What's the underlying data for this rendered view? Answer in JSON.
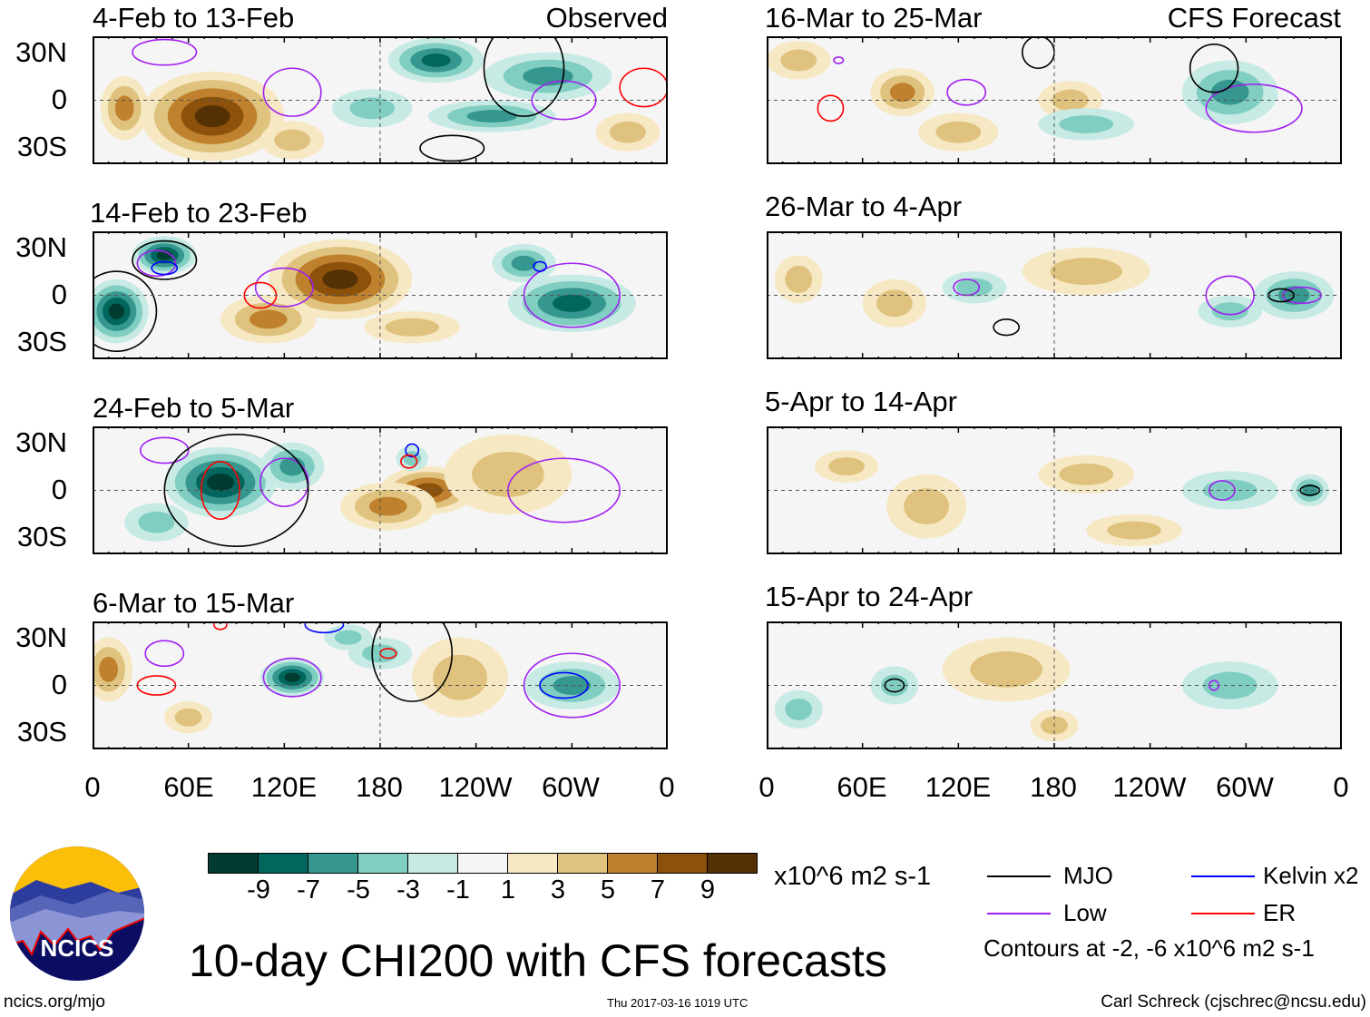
{
  "title": "10-day CHI200 with CFS forecasts",
  "left_header_right": "Observed",
  "right_header_right": "CFS Forecast",
  "colorbar": {
    "colors": [
      "#003c30",
      "#01665e",
      "#35978f",
      "#80cdc1",
      "#c7eae5",
      "#f5f5f5",
      "#f6e8c3",
      "#dfc27d",
      "#bf812d",
      "#8c510a",
      "#543005"
    ],
    "ticks": [
      "-9",
      "-7",
      "-5",
      "-3",
      "-1",
      "1",
      "3",
      "5",
      "7",
      "9"
    ],
    "units": "x10^6 m2 s-1"
  },
  "legend": {
    "items": [
      {
        "label": "MJO",
        "color": "#000000"
      },
      {
        "label": "Kelvin x2",
        "color": "#0000ff"
      },
      {
        "label": "Low",
        "color": "#a020f0"
      },
      {
        "label": "ER",
        "color": "#ff0000"
      }
    ],
    "contours_note": "Contours at -2, -6 x10^6 m2 s-1"
  },
  "axes": {
    "y_ticks": [
      "30N",
      "0",
      "30S"
    ],
    "x_ticks": [
      "0",
      "60E",
      "120E",
      "180",
      "120W",
      "60W",
      "0"
    ]
  },
  "logo": {
    "text": "NCICS"
  },
  "footer": {
    "url": "ncics.org/mjo",
    "timestamp": "Thu 2017-03-16 1019 UTC",
    "author": "Carl Schreck (cjschrec@ncsu.edu)"
  },
  "chart_data": {
    "type": "heatmap",
    "variable": "CHI200 anomaly",
    "lon_range": [
      0,
      360
    ],
    "lat_range": [
      -40,
      40
    ],
    "panels": [
      {
        "title": "4-Feb to 13-Feb",
        "blobs": [
          [
            75,
            -10,
            45,
            28,
            9
          ],
          [
            20,
            -5,
            15,
            20,
            5
          ],
          [
            215,
            25,
            30,
            14,
            -7
          ],
          [
            285,
            15,
            40,
            15,
            -5
          ],
          [
            250,
            -10,
            40,
            10,
            -5
          ],
          [
            175,
            -5,
            25,
            12,
            -3
          ],
          [
            125,
            -25,
            20,
            12,
            3
          ],
          [
            335,
            -20,
            20,
            12,
            3
          ]
        ],
        "contours": [
          [
            45,
            30,
            20,
            8,
            "Low"
          ],
          [
            125,
            5,
            18,
            15,
            "Low"
          ],
          [
            295,
            0,
            20,
            12,
            "Low"
          ],
          [
            345,
            8,
            15,
            12,
            "ER"
          ],
          [
            225,
            -30,
            20,
            8,
            "MJO"
          ],
          [
            270,
            20,
            25,
            30,
            "MJO"
          ]
        ]
      },
      {
        "title": "14-Feb to 23-Feb",
        "blobs": [
          [
            45,
            25,
            20,
            12,
            -9
          ],
          [
            15,
            -10,
            20,
            20,
            -9
          ],
          [
            155,
            10,
            45,
            25,
            9
          ],
          [
            110,
            -15,
            30,
            15,
            5
          ],
          [
            300,
            -5,
            40,
            18,
            -7
          ],
          [
            270,
            20,
            20,
            12,
            -5
          ],
          [
            200,
            -20,
            30,
            10,
            3
          ]
        ],
        "contours": [
          [
            45,
            22,
            20,
            12,
            "MJO"
          ],
          [
            40,
            20,
            12,
            8,
            "Low"
          ],
          [
            45,
            17,
            8,
            4,
            "Kelvin x2"
          ],
          [
            120,
            5,
            18,
            12,
            "Low"
          ],
          [
            105,
            0,
            10,
            8,
            "ER"
          ],
          [
            300,
            0,
            30,
            20,
            "Low"
          ],
          [
            280,
            18,
            4,
            3,
            "Kelvin x2"
          ],
          [
            15,
            -10,
            25,
            25,
            "MJO"
          ]
        ]
      },
      {
        "title": "24-Feb to 5-Mar",
        "blobs": [
          [
            80,
            5,
            35,
            22,
            -9
          ],
          [
            125,
            15,
            20,
            15,
            -5
          ],
          [
            210,
            0,
            30,
            15,
            7
          ],
          [
            185,
            -10,
            30,
            15,
            5
          ],
          [
            260,
            10,
            40,
            25,
            3
          ],
          [
            200,
            20,
            10,
            8,
            -3
          ],
          [
            40,
            -20,
            20,
            12,
            -3
          ]
        ],
        "contours": [
          [
            45,
            25,
            15,
            8,
            "Low"
          ],
          [
            80,
            0,
            12,
            18,
            "ER"
          ],
          [
            120,
            5,
            15,
            15,
            "Low"
          ],
          [
            200,
            25,
            4,
            4,
            "Kelvin x2"
          ],
          [
            198,
            18,
            5,
            4,
            "ER"
          ],
          [
            295,
            0,
            35,
            20,
            "Low"
          ],
          [
            90,
            0,
            45,
            35,
            "MJO"
          ]
        ]
      },
      {
        "title": "6-Mar to 15-Mar",
        "blobs": [
          [
            125,
            5,
            20,
            12,
            -9
          ],
          [
            300,
            0,
            30,
            15,
            -5
          ],
          [
            230,
            5,
            30,
            25,
            3
          ],
          [
            10,
            10,
            15,
            20,
            5
          ],
          [
            180,
            20,
            20,
            10,
            -3
          ],
          [
            60,
            -20,
            15,
            10,
            3
          ],
          [
            160,
            30,
            15,
            8,
            -3
          ]
        ],
        "contours": [
          [
            125,
            5,
            18,
            12,
            "Low"
          ],
          [
            45,
            20,
            12,
            8,
            "Low"
          ],
          [
            40,
            0,
            12,
            6,
            "ER"
          ],
          [
            300,
            0,
            30,
            20,
            "Low"
          ],
          [
            295,
            0,
            15,
            8,
            "Kelvin x2"
          ],
          [
            145,
            38,
            12,
            5,
            "Kelvin x2"
          ],
          [
            185,
            20,
            5,
            3,
            "ER"
          ],
          [
            200,
            20,
            25,
            30,
            "MJO"
          ],
          [
            80,
            38,
            4,
            3,
            "ER"
          ]
        ]
      },
      {
        "title": "16-Mar to 25-Mar",
        "blobs": [
          [
            85,
            5,
            20,
            15,
            5
          ],
          [
            190,
            0,
            20,
            12,
            3
          ],
          [
            120,
            -20,
            25,
            12,
            3
          ],
          [
            290,
            5,
            30,
            20,
            -5
          ],
          [
            200,
            -15,
            30,
            10,
            -3
          ],
          [
            20,
            25,
            20,
            12,
            3
          ]
        ],
        "contours": [
          [
            40,
            -5,
            8,
            8,
            "ER"
          ],
          [
            125,
            5,
            12,
            8,
            "Low"
          ],
          [
            305,
            -5,
            30,
            15,
            "Low"
          ],
          [
            170,
            30,
            10,
            10,
            "MJO"
          ],
          [
            280,
            20,
            15,
            15,
            "MJO"
          ],
          [
            45,
            25,
            3,
            2,
            "Low"
          ]
        ]
      },
      {
        "title": "26-Mar to 4-Apr",
        "blobs": [
          [
            80,
            -5,
            20,
            15,
            3
          ],
          [
            200,
            15,
            40,
            15,
            3
          ],
          [
            330,
            0,
            25,
            15,
            -5
          ],
          [
            130,
            5,
            20,
            10,
            -3
          ],
          [
            20,
            10,
            15,
            15,
            3
          ],
          [
            290,
            -10,
            20,
            10,
            -3
          ]
        ],
        "contours": [
          [
            125,
            5,
            8,
            5,
            "Low"
          ],
          [
            290,
            0,
            15,
            12,
            "Low"
          ],
          [
            335,
            0,
            12,
            5,
            "Low"
          ],
          [
            322,
            0,
            8,
            4,
            "MJO"
          ],
          [
            150,
            -20,
            8,
            5,
            "MJO"
          ]
        ]
      },
      {
        "title": "5-Apr to 14-Apr",
        "blobs": [
          [
            100,
            -10,
            25,
            20,
            3
          ],
          [
            200,
            10,
            30,
            12,
            3
          ],
          [
            290,
            0,
            30,
            12,
            -3
          ],
          [
            340,
            0,
            12,
            10,
            -5
          ],
          [
            50,
            15,
            20,
            10,
            3
          ],
          [
            230,
            -25,
            30,
            10,
            3
          ]
        ],
        "contours": [
          [
            285,
            0,
            8,
            6,
            "Low"
          ],
          [
            340,
            0,
            6,
            3,
            "MJO"
          ]
        ]
      },
      {
        "title": "15-Apr to 24-Apr",
        "blobs": [
          [
            150,
            10,
            40,
            20,
            3
          ],
          [
            80,
            0,
            15,
            12,
            -3
          ],
          [
            290,
            0,
            30,
            15,
            -3
          ],
          [
            180,
            -25,
            15,
            10,
            3
          ],
          [
            20,
            -15,
            15,
            12,
            -3
          ]
        ],
        "contours": [
          [
            80,
            0,
            6,
            4,
            "MJO"
          ],
          [
            280,
            0,
            3,
            3,
            "Low"
          ]
        ]
      }
    ]
  }
}
